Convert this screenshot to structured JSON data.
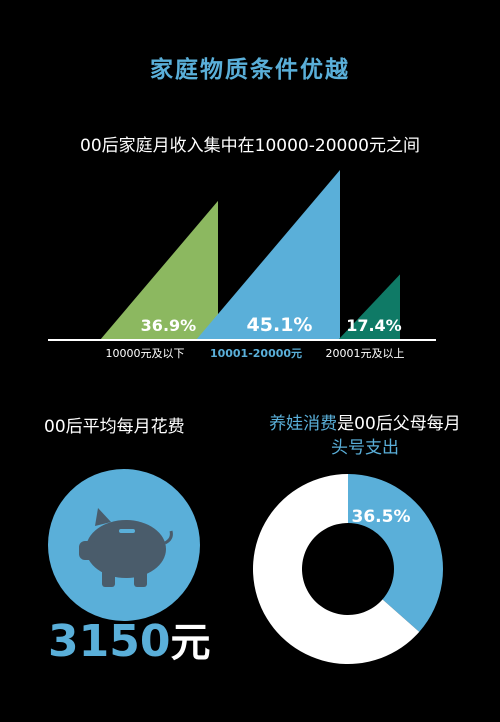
{
  "title": "家庭物质条件优越",
  "subtitle": "00后家庭月收入集中在10000-20000元之间",
  "colors": {
    "accent_blue": "#5aafd9",
    "green": "#8cb860",
    "teal": "#0f7a66",
    "background": "#000000",
    "text": "#ffffff",
    "pig": "#4a5c6b"
  },
  "chart_data": [
    {
      "type": "bar",
      "subtype": "triangle",
      "title": "00后家庭月收入集中在10000-20000元之间",
      "categories": [
        "10000元及以下",
        "10001-20000元",
        "20001元及以上"
      ],
      "values": [
        36.9,
        45.1,
        17.4
      ],
      "value_labels": [
        "36.9%",
        "45.1%",
        "17.4%"
      ],
      "category_colors": [
        "#8cb860",
        "#5aafd9",
        "#0f7a66"
      ],
      "unit": "%"
    },
    {
      "type": "pie",
      "subtype": "donut",
      "title": "养娃消费是00后父母每月头号支出",
      "values": [
        36.5,
        63.5
      ],
      "value_labels": [
        "36.5%"
      ],
      "segment_colors": [
        "#5aafd9",
        "#ffffff"
      ]
    }
  ],
  "spend": {
    "title": "00后平均每月花费",
    "amount": "3150",
    "unit": "元",
    "icon": "piggy-bank-icon"
  },
  "donut_heading": {
    "highlight": "养娃消费",
    "rest_line1": "是00后父母每月",
    "line2": "头号支出"
  }
}
